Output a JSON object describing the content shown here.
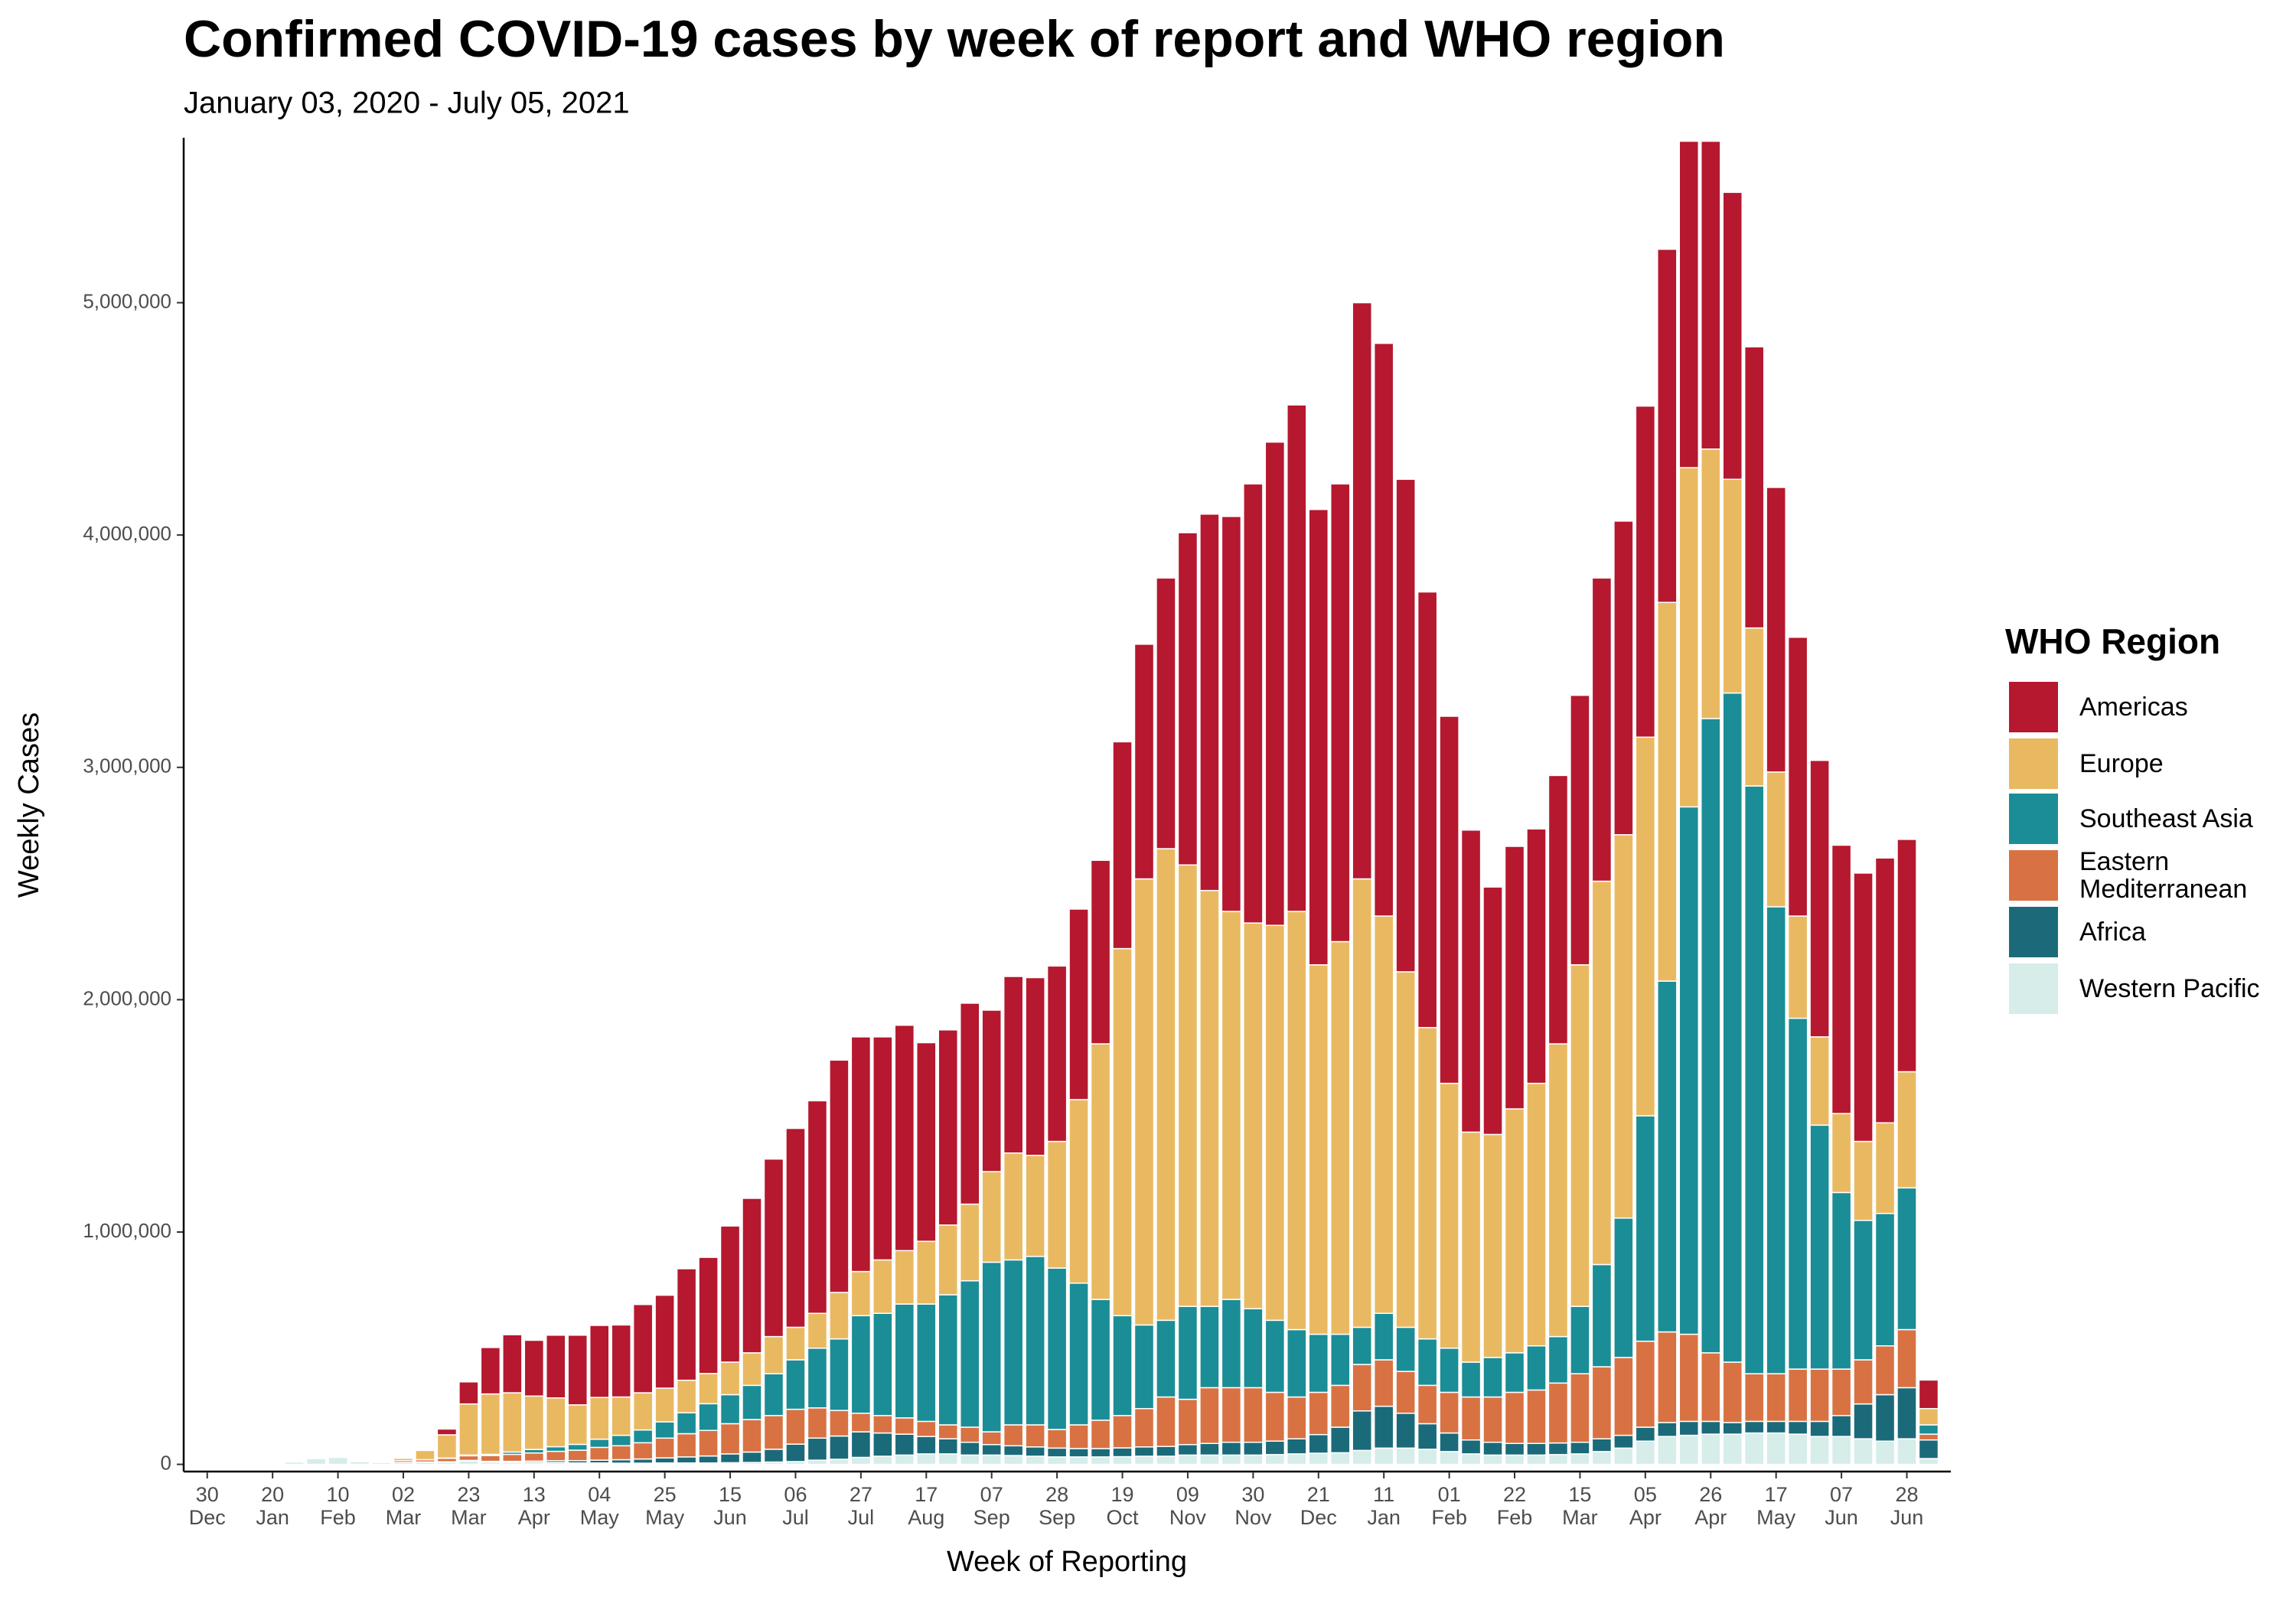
{
  "chart_data": {
    "type": "stacked_bar",
    "title": "Confirmed COVID-19 cases by week of report and WHO region",
    "subtitle": "January 03, 2020 - July 05, 2021",
    "x_label": "Week of Reporting",
    "y_label": "Weekly Cases",
    "legend_title": "WHO Region",
    "legend_position": "right",
    "categories": [
      "30\nDec",
      null,
      null,
      "20\nJan",
      null,
      null,
      "10\nFeb",
      null,
      null,
      "02\nMar",
      null,
      null,
      "23\nMar",
      null,
      null,
      "13\nApr",
      null,
      null,
      "04\nMay",
      null,
      null,
      "25\nMay",
      null,
      null,
      "15\nJun",
      null,
      null,
      "06\nJul",
      null,
      null,
      "27\nJul",
      null,
      null,
      "17\nAug",
      null,
      null,
      "07\nSep",
      null,
      null,
      "28\nSep",
      null,
      null,
      "19\nOct",
      null,
      null,
      "09\nNov",
      null,
      null,
      "30\nNov",
      null,
      null,
      "21\nDec",
      null,
      null,
      "11\nJan",
      null,
      null,
      "01\nFeb",
      null,
      null,
      "22\nFeb",
      null,
      null,
      "15\nMar",
      null,
      null,
      "05\nApr",
      null,
      null,
      "26\nApr",
      null,
      null,
      "17\nMay",
      null,
      null,
      "07\nJun",
      null,
      null,
      "28\nJun",
      null
    ],
    "ylim": [
      -31000,
      5710000
    ],
    "yticks": [
      {
        "value": 0,
        "label": "0"
      },
      {
        "value": 1000000,
        "label": "1,000,000"
      },
      {
        "value": 2000000,
        "label": "2,000,000"
      },
      {
        "value": 3000000,
        "label": "3,000,000"
      },
      {
        "value": 4000000,
        "label": "4,000,000"
      },
      {
        "value": 5000000,
        "label": "5,000,000"
      }
    ],
    "series": [
      {
        "name": "Americas",
        "color": "#b5182f",
        "values": [
          0,
          0,
          0,
          0,
          0,
          0,
          0,
          0,
          0,
          0,
          5000,
          25000,
          95000,
          200000,
          250000,
          240000,
          270000,
          300000,
          310000,
          310000,
          380000,
          400000,
          480000,
          500000,
          586000,
          665000,
          764000,
          856000,
          915000,
          1000000,
          1010000,
          960000,
          970000,
          855000,
          840000,
          865000,
          695000,
          760000,
          765000,
          755000,
          820000,
          790000,
          890000,
          1010000,
          1165000,
          1430000,
          1620000,
          1700000,
          1890000,
          2080000,
          2180000,
          1960000,
          1970000,
          2480000,
          2465000,
          2120000,
          1875000,
          1580000,
          1300000,
          1065000,
          1130000,
          1095000,
          1155000,
          1160000,
          1305000,
          1350000,
          1425000,
          1520000,
          1405000,
          1325000,
          1235000,
          1210000,
          1225000,
          1200000,
          1190000,
          1155000,
          1155000,
          1140000,
          1000000,
          123000
        ]
      },
      {
        "name": "Europe",
        "color": "#e9b962",
        "values": [
          0,
          0,
          0,
          0,
          0,
          0,
          0,
          0,
          2000,
          10000,
          40000,
          100000,
          220000,
          260000,
          255000,
          230000,
          210000,
          170000,
          180000,
          165000,
          160000,
          145000,
          140000,
          130000,
          140000,
          140000,
          160000,
          140000,
          150000,
          200000,
          190000,
          230000,
          230000,
          270000,
          300000,
          330000,
          390000,
          460000,
          435000,
          545000,
          790000,
          1100000,
          1580000,
          1920000,
          2030000,
          1900000,
          1790000,
          1670000,
          1660000,
          1700000,
          1800000,
          1590000,
          1690000,
          1930000,
          1710000,
          1530000,
          1340000,
          1140000,
          990000,
          960000,
          1050000,
          1130000,
          1260000,
          1470000,
          1650000,
          1650000,
          1630000,
          1630000,
          1460000,
          1160000,
          920000,
          680000,
          580000,
          440000,
          380000,
          340000,
          340000,
          390000,
          500000,
          70000
        ]
      },
      {
        "name": "Southeast Asia",
        "color": "#1b8d96",
        "values": [
          0,
          0,
          0,
          0,
          0,
          0,
          0,
          0,
          0,
          0,
          0,
          1000,
          3000,
          5000,
          10000,
          15000,
          20000,
          25000,
          35000,
          45000,
          55000,
          70000,
          90000,
          115000,
          125000,
          147000,
          180000,
          213000,
          257000,
          308000,
          420000,
          440000,
          490000,
          505000,
          560000,
          630000,
          730000,
          710000,
          725000,
          695000,
          610000,
          520000,
          430000,
          360000,
          330000,
          400000,
          350000,
          380000,
          340000,
          310000,
          290000,
          250000,
          220000,
          160000,
          200000,
          190000,
          200000,
          190000,
          150000,
          170000,
          170000,
          190000,
          200000,
          290000,
          440000,
          600000,
          970000,
          1510000,
          2270000,
          2730000,
          2880000,
          2530000,
          2010000,
          1510000,
          1050000,
          760000,
          600000,
          570000,
          610000,
          40000
        ]
      },
      {
        "name": "Eastern\nMediterranean",
        "color": "#d87243",
        "values": [
          0,
          0,
          0,
          0,
          0,
          0,
          0,
          0,
          1000,
          8000,
          10000,
          15000,
          20000,
          25000,
          30000,
          35000,
          40000,
          45000,
          55000,
          60000,
          70000,
          85000,
          100000,
          110000,
          130000,
          140000,
          145000,
          150000,
          130000,
          110000,
          80000,
          75000,
          70000,
          65000,
          60000,
          65000,
          55000,
          90000,
          95000,
          80000,
          102000,
          122000,
          139000,
          165000,
          213000,
          195000,
          240000,
          235000,
          235000,
          210000,
          180000,
          182000,
          180000,
          200000,
          200000,
          180000,
          165000,
          175000,
          185000,
          195000,
          220000,
          230000,
          258000,
          295000,
          310000,
          335000,
          370000,
          390000,
          375000,
          295000,
          260000,
          205000,
          205000,
          225000,
          225000,
          200000,
          190000,
          210000,
          250000,
          25000
        ]
      },
      {
        "name": "Africa",
        "color": "#1b6a7a",
        "values": [
          0,
          0,
          0,
          0,
          0,
          0,
          0,
          0,
          0,
          0,
          0,
          1000,
          2000,
          3000,
          5000,
          6000,
          8000,
          10000,
          12000,
          15000,
          18000,
          22000,
          26000,
          30000,
          38000,
          45000,
          55000,
          75000,
          95000,
          100000,
          110000,
          100000,
          90000,
          75000,
          65000,
          55000,
          45000,
          42000,
          40000,
          38000,
          36000,
          36000,
          38000,
          40000,
          42000,
          45000,
          50000,
          55000,
          55000,
          58000,
          65000,
          80000,
          110000,
          170000,
          180000,
          150000,
          110000,
          80000,
          60000,
          55000,
          50000,
          50000,
          50000,
          50000,
          55000,
          55000,
          60000,
          60000,
          60000,
          55000,
          50000,
          50000,
          50000,
          55000,
          65000,
          90000,
          150000,
          200000,
          220000,
          80000
        ]
      },
      {
        "name": "Western Pacific",
        "color": "#d6edea",
        "values": [
          0,
          0,
          1000,
          5000,
          10000,
          25000,
          30000,
          12000,
          8000,
          8000,
          10000,
          10000,
          15000,
          10000,
          8000,
          8000,
          8000,
          6000,
          6000,
          5000,
          5000,
          6000,
          6000,
          6000,
          7000,
          8000,
          10000,
          12000,
          18000,
          22000,
          30000,
          35000,
          40000,
          45000,
          45000,
          40000,
          40000,
          38000,
          35000,
          32000,
          32000,
          32000,
          33000,
          35000,
          35000,
          40000,
          40000,
          40000,
          40000,
          42000,
          45000,
          48000,
          50000,
          60000,
          70000,
          70000,
          65000,
          55000,
          45000,
          40000,
          40000,
          40000,
          42000,
          45000,
          55000,
          70000,
          100000,
          120000,
          125000,
          130000,
          130000,
          135000,
          135000,
          130000,
          120000,
          120000,
          110000,
          100000,
          110000,
          25000
        ]
      }
    ]
  }
}
